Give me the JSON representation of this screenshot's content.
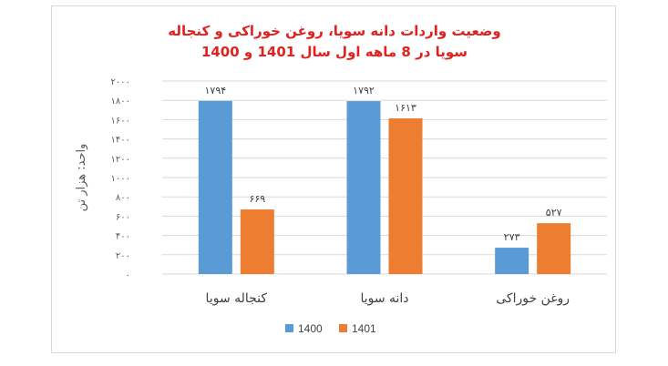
{
  "chart_data": {
    "type": "bar",
    "title_lines": [
      "وضعیت واردات دانه سویا، روغن خوراکی و کنجاله",
      "سویا در 8 ماهه اول سال 1401 و 1400"
    ],
    "ylabel": "واحد: هزار تن",
    "xlabel": "",
    "ylim": [
      0,
      2000
    ],
    "yticks": [
      0,
      200,
      400,
      600,
      800,
      1000,
      1200,
      1400,
      1600,
      1800,
      2000
    ],
    "ytick_labels": [
      "۰",
      "۲۰۰",
      "۴۰۰",
      "۶۰۰",
      "۸۰۰",
      "۱۰۰۰",
      "۱۲۰۰",
      "۱۴۰۰",
      "۱۶۰۰",
      "۱۸۰۰",
      "۲۰۰۰"
    ],
    "categories": [
      "کنجاله سویا",
      "دانه سویا",
      "روغن خوراکی"
    ],
    "series": [
      {
        "name": "1400",
        "color": "#5b9bd5",
        "values": [
          1794,
          1792,
          273
        ],
        "labels": [
          "۱۷۹۴",
          "۱۷۹۲",
          "۲۷۳"
        ]
      },
      {
        "name": "1401",
        "color": "#ed7d31",
        "values": [
          669,
          1613,
          527
        ],
        "labels": [
          "۶۶۹",
          "۱۶۱۳",
          "۵۲۷"
        ]
      }
    ],
    "grid": true,
    "legend": "bottom"
  }
}
